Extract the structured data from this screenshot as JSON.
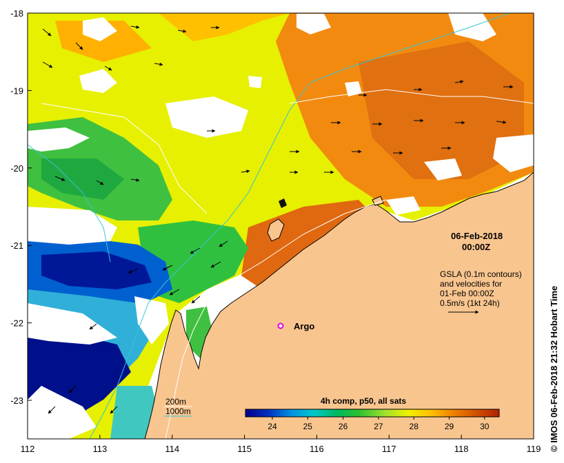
{
  "map": {
    "date": "06-Feb-2018",
    "time": "00:00Z",
    "credit": "IMOS 06-Feb-2018 21:32 Hobart Time",
    "copyright_symbol": "©",
    "legend_lines": [
      "GSLA (0.1m contours)",
      "and velocities for",
      "01-Feb 00:00Z",
      "0.5m/s (1kt 24h)"
    ],
    "isobaths": [
      {
        "label": "200m",
        "color": "#ffffff"
      },
      {
        "label": "1000m",
        "color": "#35c5d3"
      }
    ],
    "marker": {
      "label": "Argo",
      "lon": 115.45,
      "lat": -22.05,
      "color": "#e000e0"
    },
    "lon_ticks": [
      "112",
      "113",
      "114",
      "115",
      "116",
      "117",
      "118",
      "119"
    ],
    "lat_ticks": [
      "-18",
      "-19",
      "-20",
      "-21",
      "-22",
      "-23"
    ],
    "land_color": "#f9c58f",
    "colorbar": {
      "title": "4h comp, p50, all sats",
      "ticks": [
        "24",
        "25",
        "26",
        "27",
        "28",
        "29",
        "30"
      ],
      "stops": [
        "#00008a",
        "#0030c0",
        "#0090e0",
        "#00c8c8",
        "#00b860",
        "#30c030",
        "#a0e030",
        "#f0f000",
        "#ffc000",
        "#f08000",
        "#d05000",
        "#b02000"
      ]
    }
  }
}
